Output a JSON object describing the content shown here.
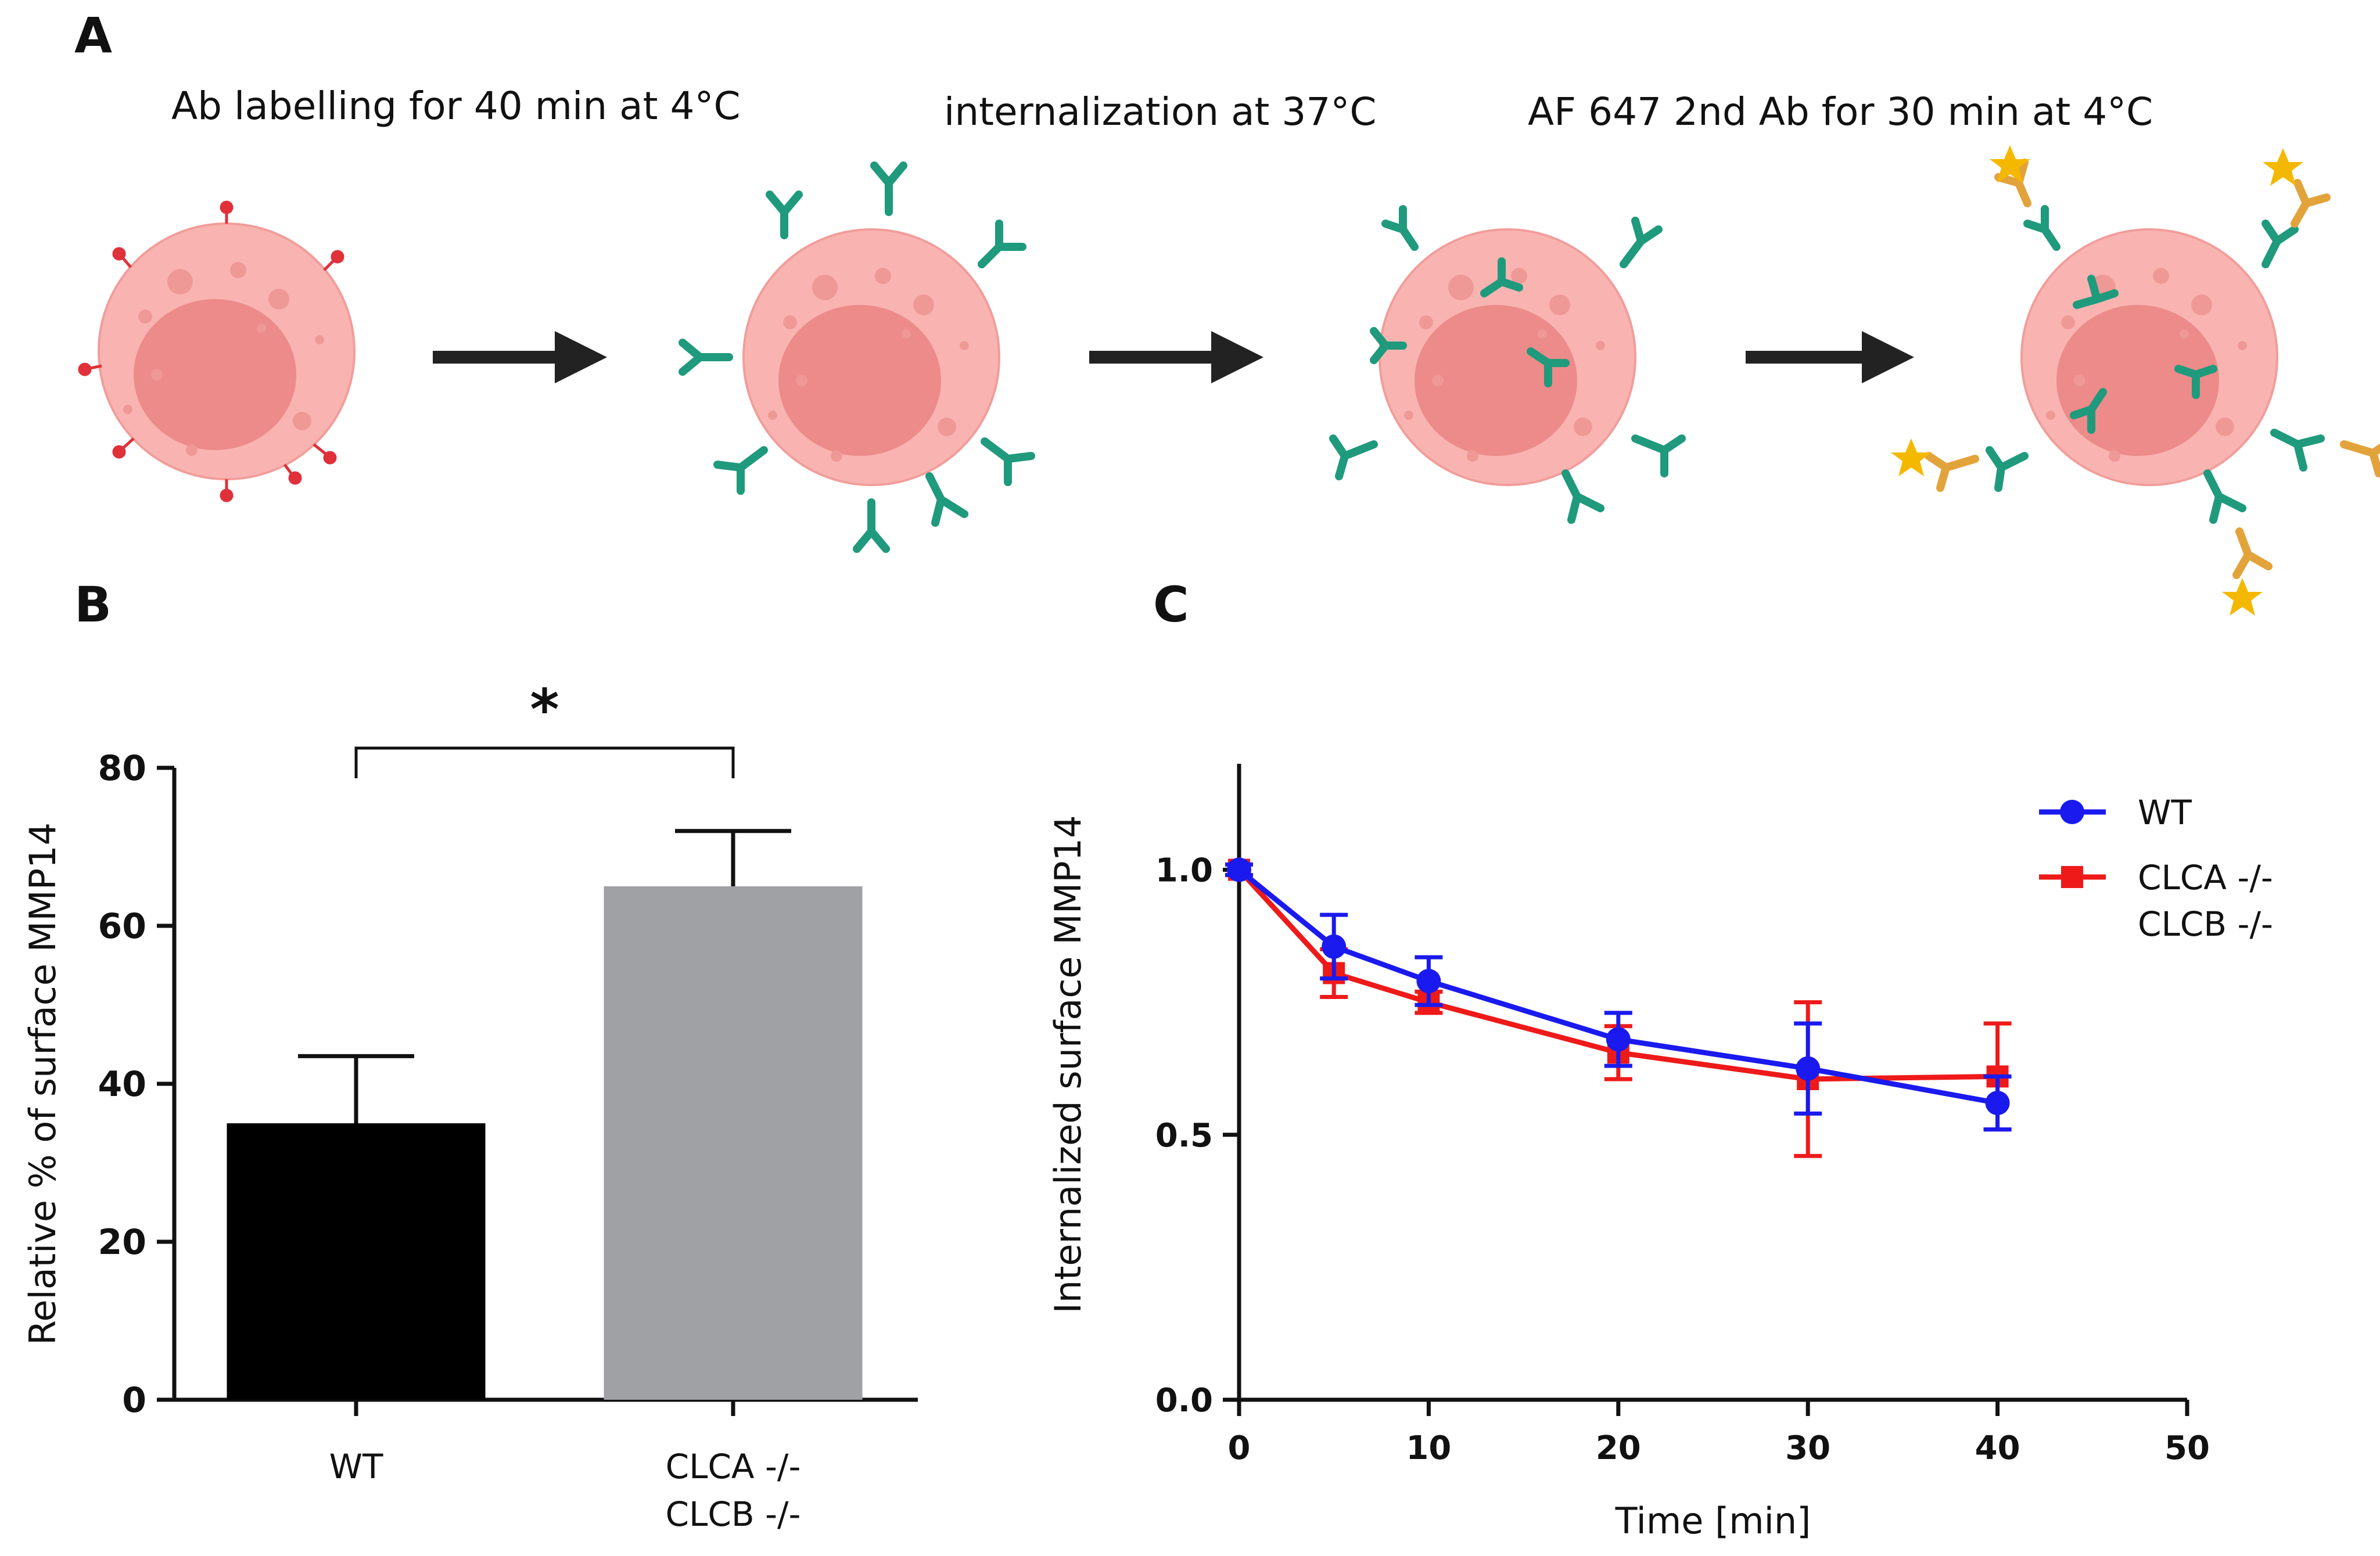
{
  "panel_a": {
    "letter": "A",
    "steps": [
      "Ab labelling for 40 min at 4°C",
      "internalization at 37°C",
      "AF 647 2nd Ab for 30 min at 4°C"
    ],
    "colors": {
      "cell": "#f9b4b2",
      "nucleus": "#ec8b89",
      "receptor": "#e0303a",
      "primary_ab": "#1f9a7c",
      "secondary_ab": "#e3a33b",
      "fluorophore": "#f5b800",
      "arrow": "#222222"
    }
  },
  "panel_b": {
    "letter": "B",
    "significance": "*",
    "chart_data": {
      "type": "bar",
      "categories": [
        [
          "WT"
        ],
        [
          "CLCA -/-",
          "CLCB -/-"
        ]
      ],
      "values": [
        35,
        65
      ],
      "errors": [
        8.5,
        7
      ],
      "bar_colors": [
        "#000000",
        "#a0a1a4"
      ],
      "ylabel": "Relative % of surface MMP14",
      "xlabel": "",
      "ylim": [
        0,
        80
      ],
      "yticks": [
        0,
        20,
        40,
        60,
        80
      ],
      "grid": false
    }
  },
  "panel_c": {
    "letter": "C",
    "chart_data": {
      "type": "line",
      "xlabel": "Time [min]",
      "ylabel": "Internalized surface MMP14",
      "xlim": [
        0,
        50
      ],
      "ylim": [
        0,
        1.2
      ],
      "xticks": [
        0,
        10,
        20,
        30,
        40,
        50
      ],
      "yticks": [
        0,
        0.5,
        1.0
      ],
      "ytick_labels": [
        "0.0",
        "0.5",
        "1.0"
      ],
      "grid": false,
      "legend": "top-right",
      "series": [
        {
          "name": "WT",
          "color": "#1a1aee",
          "marker": "circle",
          "x": [
            0,
            5,
            10,
            20,
            30,
            40
          ],
          "y": [
            1.0,
            0.855,
            0.79,
            0.68,
            0.625,
            0.56
          ],
          "err": [
            0.01,
            0.06,
            0.045,
            0.05,
            0.085,
            0.05
          ]
        },
        {
          "name": "CLCA -/-\nCLCB -/-",
          "color": "#ee1a1a",
          "marker": "square",
          "x": [
            0,
            5,
            10,
            20,
            30,
            40
          ],
          "y": [
            1.0,
            0.805,
            0.75,
            0.655,
            0.605,
            0.61
          ],
          "err": [
            0.01,
            0.045,
            0.02,
            0.05,
            0.145,
            0.1
          ]
        }
      ]
    }
  }
}
